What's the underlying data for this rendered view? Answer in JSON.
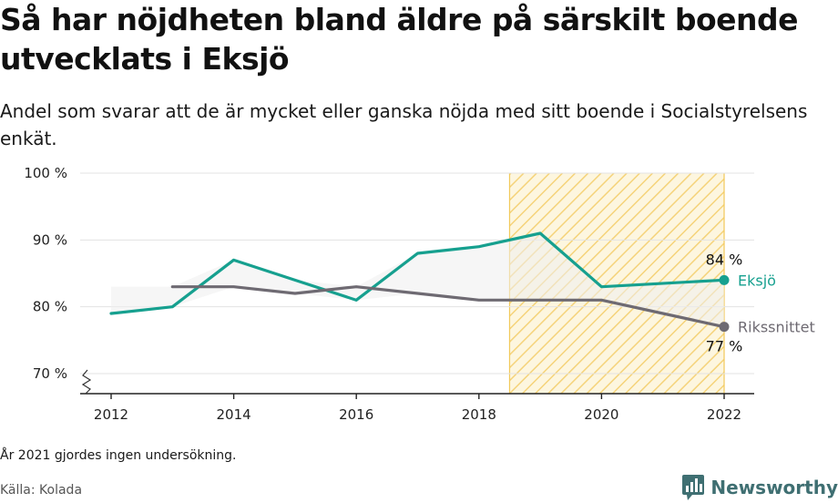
{
  "header": {
    "title": "Så har nöjdheten bland äldre på särskilt boende utvecklats i Eksjö",
    "subtitle": "Andel som svarar att de är mycket eller ganska nöjda med sitt boende i Socialstyrelsens enkät."
  },
  "footer": {
    "note": "År 2021 gjordes ingen undersökning.",
    "source": "Källa: Kolada",
    "brand": "Newsworthy"
  },
  "colors": {
    "eksjo": "#16a08f",
    "riket": "#6e6a72",
    "highlight_fill": "#fcefc4",
    "highlight_stroke": "#f2c95a",
    "grid": "#e3e3e3",
    "axis": "#222222",
    "brand": "#3f6f72"
  },
  "icons": {
    "brand_logo": "bar-chart-bubble-icon"
  },
  "chart_data": {
    "type": "line",
    "x": [
      2012,
      2013,
      2014,
      2015,
      2016,
      2017,
      2018,
      2019,
      2020,
      2022
    ],
    "xticks": [
      2012,
      2014,
      2016,
      2018,
      2020,
      2022
    ],
    "xtick_labels": [
      "2012",
      "2014",
      "2016",
      "2018",
      "2020",
      "2022"
    ],
    "yticks": [
      70,
      80,
      90,
      100
    ],
    "ytick_labels": [
      "70 %",
      "80 %",
      "90 %",
      "100 %"
    ],
    "xlim": [
      2012,
      2022
    ],
    "ylim": [
      70,
      100
    ],
    "grid": true,
    "highlight_range": [
      2018.5,
      2022
    ],
    "series": [
      {
        "name": "Eksjö",
        "color": "#16a08f",
        "x": [
          2012,
          2013,
          2014,
          2015,
          2016,
          2017,
          2018,
          2019,
          2020,
          2022
        ],
        "values": [
          79,
          80,
          87,
          84,
          81,
          88,
          89,
          91,
          83,
          84
        ],
        "end_label": "84 %"
      },
      {
        "name": "Rikssnittet",
        "color": "#6e6a72",
        "x": [
          2013,
          2014,
          2015,
          2016,
          2017,
          2018,
          2019,
          2020,
          2022
        ],
        "values": [
          83,
          83,
          82,
          83,
          82,
          81,
          81,
          81,
          77
        ],
        "end_label": "77 %"
      }
    ]
  }
}
